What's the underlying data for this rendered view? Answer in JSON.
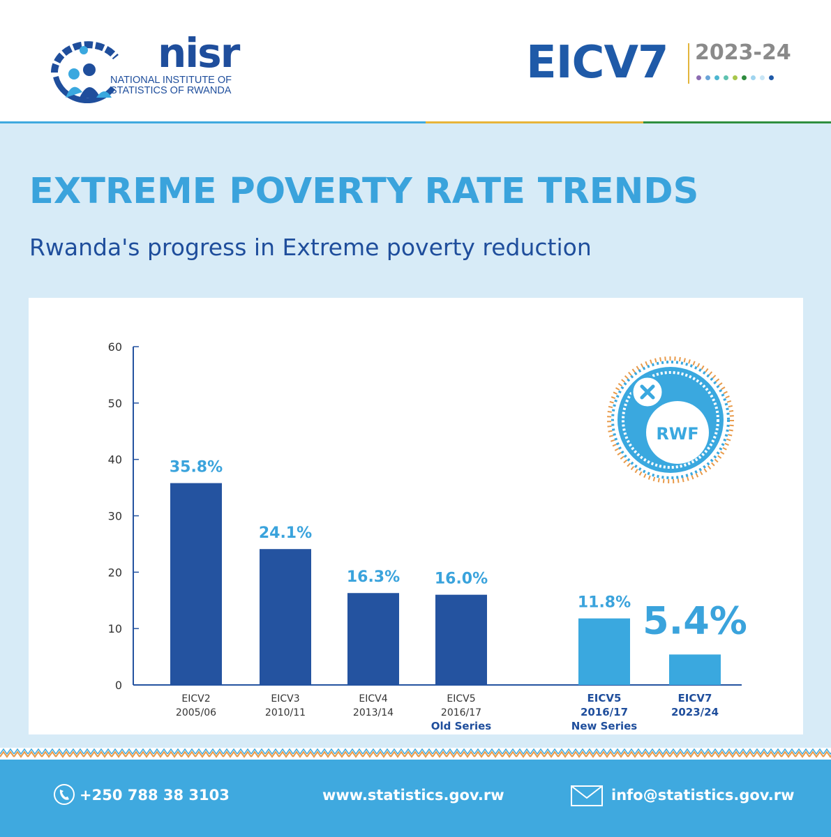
{
  "header": {
    "logo_name": "nisr",
    "logo_subtitle_line1": "NATIONAL INSTITUTE OF",
    "logo_subtitle_line2": "STATISTICS OF RWANDA",
    "survey_name": "EICV7",
    "survey_year": "2023-24",
    "dot_colors": [
      "#8c6bb1",
      "#6aa5d8",
      "#4cb6d0",
      "#5fc2b0",
      "#a8c64a",
      "#2e8b3d",
      "#9fd4ef",
      "#c8e6f6",
      "#1f5aa8"
    ]
  },
  "title": "EXTREME POVERTY RATE TRENDS",
  "subtitle": "Rwanda's progress in Extreme poverty reduction",
  "badge": {
    "label": "RWF",
    "icon": "x-circle-icon"
  },
  "chart_data": {
    "type": "bar",
    "title": "",
    "xlabel": "",
    "ylabel": "",
    "ylim": [
      0,
      60
    ],
    "yticks": [
      0,
      10,
      20,
      30,
      40,
      50,
      60
    ],
    "grid": false,
    "categories": [
      {
        "line1": "EICV2",
        "line2": "2005/06",
        "line3": "",
        "bold": false
      },
      {
        "line1": "EICV3",
        "line2": "2010/11",
        "line3": "",
        "bold": false
      },
      {
        "line1": "EICV4",
        "line2": "2013/14",
        "line3": "",
        "bold": false
      },
      {
        "line1": "EICV5",
        "line2": "2016/17",
        "line3": "Old Series",
        "bold": false
      },
      {
        "line1": "EICV5",
        "line2": "2016/17",
        "line3": "New Series",
        "bold": true
      },
      {
        "line1": "EICV7",
        "line2": "2023/24",
        "line3": "",
        "bold": true
      }
    ],
    "values": [
      35.8,
      24.1,
      16.3,
      16.0,
      11.8,
      5.4
    ],
    "value_labels": [
      "35.8%",
      "24.1%",
      "16.3%",
      "16.0%",
      "11.8%",
      "5.4%"
    ],
    "series_groups": [
      {
        "color": "#2453a0",
        "indices": [
          0,
          1,
          2,
          3
        ]
      },
      {
        "color": "#3aa8df",
        "indices": [
          4,
          5
        ]
      }
    ],
    "label_colors": [
      "#3aa3dc",
      "#3aa3dc",
      "#3aa3dc",
      "#3aa3dc",
      "#3aa3dc",
      "#3aa3dc"
    ]
  },
  "footer": {
    "phone": "+250 788 38 3103",
    "website": "www.statistics.gov.rw",
    "email": "info@statistics.gov.rw",
    "phone_icon": "phone-icon",
    "email_icon": "envelope-icon"
  }
}
